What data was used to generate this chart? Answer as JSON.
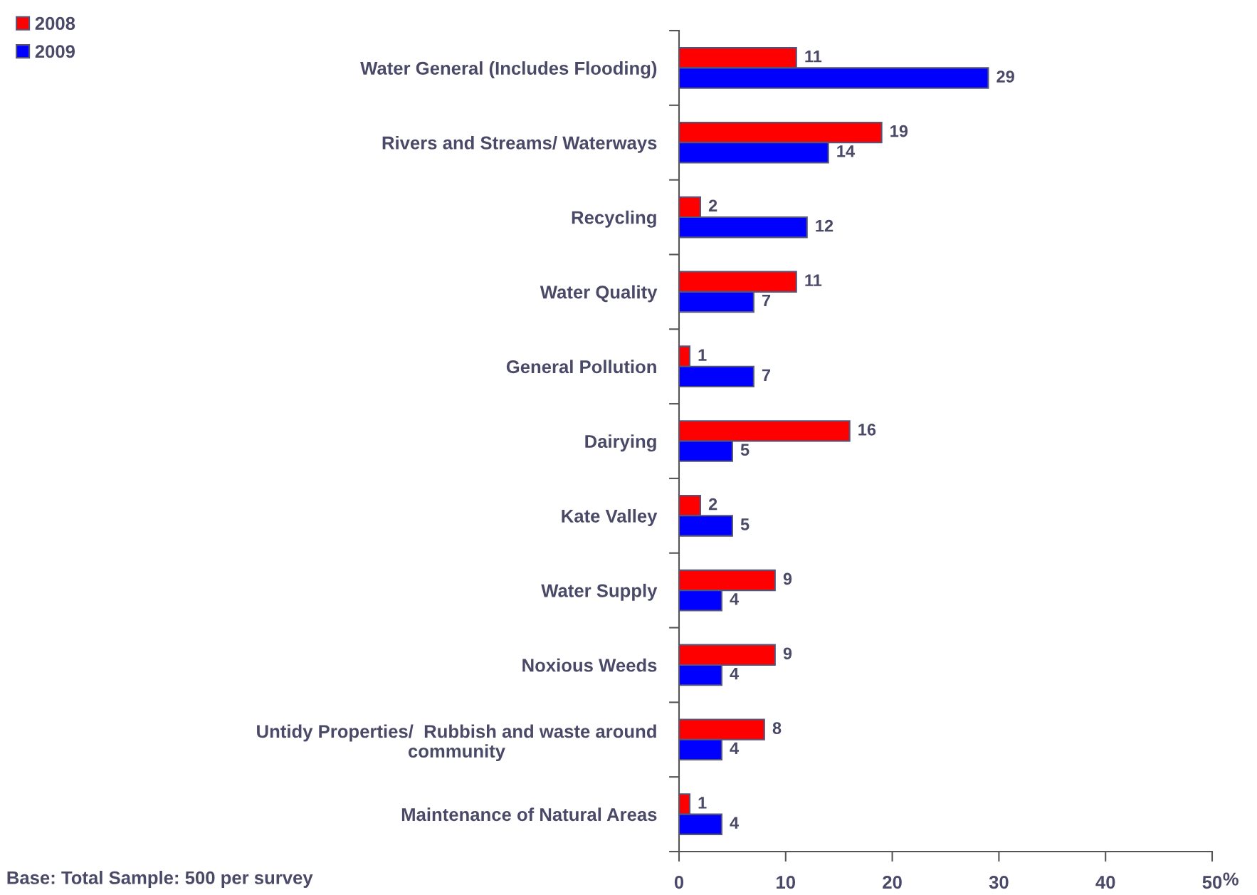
{
  "chart_data": {
    "type": "bar",
    "orientation": "horizontal",
    "categories": [
      "Water General (Includes Flooding)",
      "Rivers and Streams/ Waterways",
      "Recycling",
      "Water Quality",
      "General Pollution",
      "Dairying",
      "Kate Valley",
      "Water Supply",
      "Noxious Weeds",
      "Untidy Properties/  Rubbish and waste around\ncommunity",
      "Maintenance of Natural Areas"
    ],
    "series": [
      {
        "name": "2008",
        "color": "#ff0000",
        "values": [
          11,
          19,
          2,
          11,
          1,
          16,
          2,
          9,
          9,
          8,
          1
        ]
      },
      {
        "name": "2009",
        "color": "#0000ff",
        "values": [
          29,
          14,
          12,
          7,
          7,
          5,
          5,
          4,
          4,
          4,
          4
        ]
      }
    ],
    "xlim": [
      0,
      50
    ],
    "xticks": [
      0,
      10,
      20,
      30,
      40,
      50
    ],
    "xlabel": "%",
    "data_labels": true,
    "legend": "top left",
    "grid": false,
    "annotations": [
      "Base: Total Sample: 500 per survey"
    ]
  }
}
